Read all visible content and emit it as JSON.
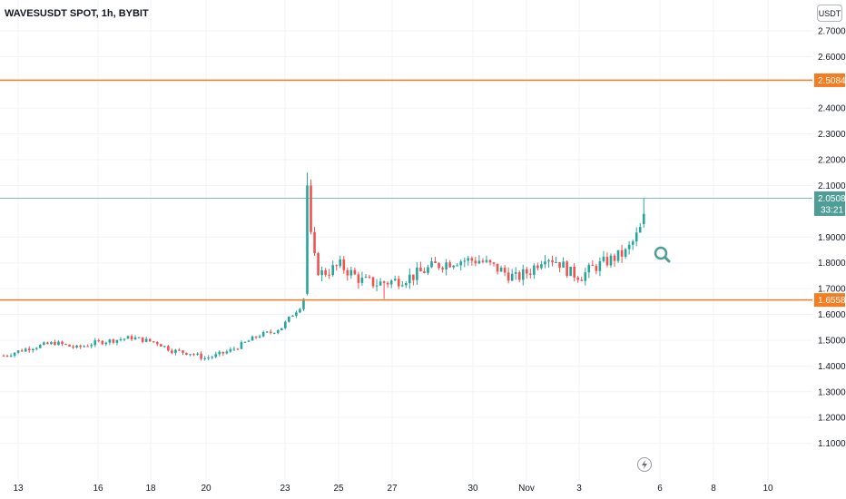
{
  "header": {
    "title": "WAVESUSDT SPOT, 1h, BYBIT"
  },
  "toolbar": {
    "currency_label": "USDT"
  },
  "colors": {
    "up": "#26a69a",
    "down": "#ef5350",
    "level": "#f57c20",
    "price": "#4f9d97"
  },
  "icons": {
    "zoom": "magnifier-icon",
    "bolt": "lightning-icon"
  },
  "chart_data": {
    "type": "candlestick",
    "symbol": "WAVESUSDT SPOT",
    "interval": "1h",
    "exchange": "BYBIT",
    "ylim": [
      1.06,
      2.76
    ],
    "y_ticks": [
      "2.7000",
      "2.6000",
      "2.4000",
      "2.3000",
      "2.2000",
      "2.1000",
      "1.9000",
      "1.8000",
      "1.7000",
      "1.6000",
      "1.5000",
      "1.4000",
      "1.3000",
      "1.2000",
      "1.1000"
    ],
    "x_ticks": [
      "13",
      "16",
      "18",
      "20",
      "23",
      "25",
      "27",
      "30",
      "Nov",
      "3",
      "6",
      "8",
      "10"
    ],
    "horizontal_levels": [
      {
        "value": 2.5084,
        "label": "2.5084"
      },
      {
        "value": 1.6558,
        "label": "1.6558"
      }
    ],
    "last_price": {
      "value": 2.0508,
      "label": "2.0508",
      "countdown": "33:21"
    },
    "series": [
      {
        "close_path": [
          [
            0,
            1.44
          ],
          [
            7,
            1.47
          ],
          [
            14,
            1.49
          ],
          [
            20,
            1.47
          ],
          [
            25,
            1.49
          ],
          [
            30,
            1.5
          ],
          [
            35,
            1.51
          ],
          [
            42,
            1.49
          ],
          [
            46,
            1.46
          ],
          [
            51,
            1.45
          ],
          [
            55,
            1.43
          ],
          [
            58,
            1.44
          ],
          [
            62,
            1.46
          ],
          [
            66,
            1.49
          ],
          [
            70,
            1.52
          ],
          [
            73,
            1.53
          ],
          [
            76,
            1.55
          ],
          [
            79,
            1.6
          ],
          [
            81,
            1.63
          ],
          [
            82.5,
            1.68
          ],
          [
            83.5,
            1.95
          ],
          [
            84.5,
            1.85
          ],
          [
            85.5,
            1.78
          ],
          [
            87,
            1.76
          ],
          [
            89,
            1.77
          ],
          [
            92,
            1.79
          ],
          [
            95,
            1.76
          ],
          [
            98,
            1.73
          ],
          [
            102,
            1.72
          ],
          [
            107,
            1.73
          ],
          [
            112,
            1.75
          ],
          [
            118,
            1.79
          ],
          [
            124,
            1.81
          ],
          [
            130,
            1.81
          ],
          [
            136,
            1.77
          ],
          [
            140,
            1.74
          ],
          [
            144,
            1.77
          ],
          [
            148,
            1.83
          ],
          [
            152,
            1.8
          ],
          [
            155,
            1.76
          ],
          [
            158,
            1.75
          ],
          [
            161,
            1.78
          ],
          [
            164,
            1.8
          ],
          [
            167,
            1.82
          ],
          [
            170,
            1.84
          ],
          [
            172,
            1.88
          ],
          [
            174,
            1.93
          ],
          [
            175,
            1.96
          ]
        ]
      }
    ]
  }
}
